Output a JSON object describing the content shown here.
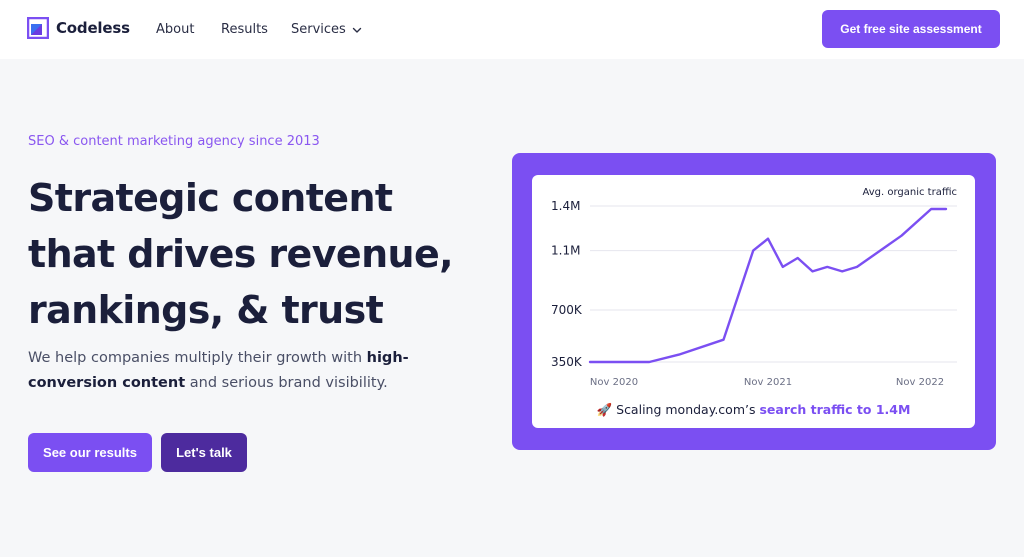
{
  "nav": {
    "brand": "Codeless",
    "links": [
      {
        "label": "About"
      },
      {
        "label": "Results"
      },
      {
        "label": "Services"
      }
    ],
    "cta": "Get free site assessment"
  },
  "hero": {
    "eyebrow": "SEO & content marketing agency since 2013",
    "headline": [
      "Strategic content",
      "that drives revenue,",
      "rankings, & trust"
    ],
    "sub_pre": "We help companies multiply their growth with ",
    "sub_bold": "high-conversion content",
    "sub_post": " and serious brand visibility.",
    "buttons": {
      "primary": "See our results",
      "secondary": "Let's talk"
    }
  },
  "caption": {
    "emoji": "🚀",
    "pre": " Scaling monday.com’s ",
    "highlight": "search traffic to 1.4M"
  },
  "colors": {
    "accent": "#7b4ff2",
    "accent_dark": "#4d2b9e",
    "text": "#1b1f3b"
  },
  "icons": {
    "logo": "codeless-logo-icon",
    "services": "chevron-down-icon",
    "caption": "rocket-icon"
  },
  "chart_data": {
    "type": "line",
    "title": "",
    "legend": "Avg. organic traffic",
    "ytick_labels": [
      "1.4M",
      "1.1M",
      "700K",
      "350K"
    ],
    "yticks": [
      1400000,
      1100000,
      700000,
      350000
    ],
    "ylim": [
      350000,
      1400000
    ],
    "xtick_labels": [
      "Nov 2020",
      "Nov 2021",
      "Nov 2022"
    ],
    "series": [
      {
        "name": "Avg. organic traffic",
        "x": [
          "2020-11",
          "2021-01",
          "2021-03",
          "2021-05",
          "2021-08",
          "2021-10",
          "2021-11",
          "2021-12",
          "2022-01",
          "2022-02",
          "2022-03",
          "2022-04",
          "2022-05",
          "2022-06",
          "2022-08",
          "2022-10",
          "2022-11"
        ],
        "values": [
          350000,
          350000,
          350000,
          400000,
          500000,
          1100000,
          1180000,
          990000,
          1050000,
          960000,
          990000,
          960000,
          990000,
          1060000,
          1200000,
          1380000,
          1380000
        ]
      }
    ]
  }
}
